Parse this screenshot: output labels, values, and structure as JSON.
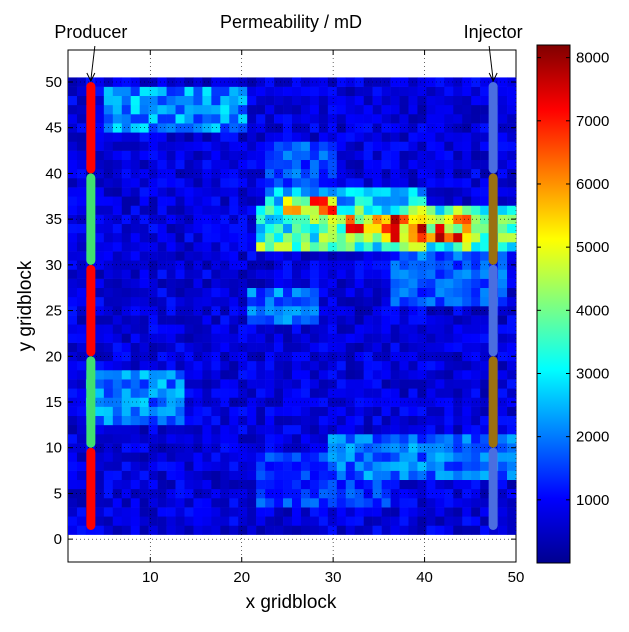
{
  "chart_data": {
    "type": "heatmap",
    "title": "Permeability / mD",
    "xlabel": "x gridblock",
    "ylabel": "y gridblock",
    "xlim": [
      1,
      50
    ],
    "ylim": [
      -2.5,
      53.5
    ],
    "x_ticks": [
      10,
      20,
      30,
      40,
      50
    ],
    "y_ticks": [
      0,
      5,
      10,
      15,
      20,
      25,
      30,
      35,
      40,
      45,
      50
    ],
    "grid": "dotted",
    "colormap": "jet",
    "color_range": [
      0,
      8200
    ],
    "colorbar_ticks": [
      1000,
      2000,
      3000,
      4000,
      5000,
      6000,
      7000,
      8000
    ],
    "grid_size": {
      "nx": 50,
      "ny": 50
    },
    "features": [
      {
        "x": [
          22,
          51
        ],
        "y": [
          32,
          36
        ],
        "value": 5000
      },
      {
        "x": [
          32,
          45
        ],
        "y": [
          33,
          35
        ],
        "value": 8000
      },
      {
        "x": [
          23,
          40
        ],
        "y": [
          36,
          38
        ],
        "value": 3500
      },
      {
        "x": [
          25,
          30
        ],
        "y": [
          36,
          37
        ],
        "value": 7500
      },
      {
        "x": [
          5,
          20
        ],
        "y": [
          45,
          49
        ],
        "value": 3000
      },
      {
        "x": [
          3,
          13
        ],
        "y": [
          13,
          18
        ],
        "value": 2800
      },
      {
        "x": [
          21,
          28
        ],
        "y": [
          24,
          27
        ],
        "value": 2600
      },
      {
        "x": [
          30,
          50
        ],
        "y": [
          7,
          11
        ],
        "value": 2600
      },
      {
        "x": [
          37,
          49
        ],
        "y": [
          26,
          31
        ],
        "value": 2400
      },
      {
        "x": [
          23,
          30
        ],
        "y": [
          38,
          43
        ],
        "value": 2200
      },
      {
        "x": [
          22,
          36
        ],
        "y": [
          4,
          9
        ],
        "value": 2000
      }
    ],
    "wells": [
      {
        "name": "Producer",
        "x": 3.5,
        "segments": [
          {
            "y": [
              1,
              10
            ],
            "color": "#ff0000"
          },
          {
            "y": [
              10,
              20
            ],
            "color": "#40e070"
          },
          {
            "y": [
              20,
              30
            ],
            "color": "#ff0000"
          },
          {
            "y": [
              30,
              40
            ],
            "color": "#40e070"
          },
          {
            "y": [
              40,
              50
            ],
            "color": "#ff0000"
          }
        ]
      },
      {
        "name": "Injector",
        "x": 47.5,
        "segments": [
          {
            "y": [
              1,
              10
            ],
            "color": "#4a6ee0"
          },
          {
            "y": [
              10,
              20
            ],
            "color": "#9a7010"
          },
          {
            "y": [
              20,
              30
            ],
            "color": "#4a6ee0"
          },
          {
            "y": [
              30,
              40
            ],
            "color": "#9a7010"
          },
          {
            "y": [
              40,
              50
            ],
            "color": "#4a6ee0"
          }
        ]
      }
    ]
  }
}
